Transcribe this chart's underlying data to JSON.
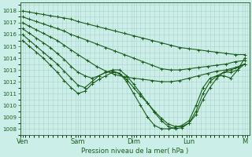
{
  "xlabel": "Pression niveau de la mer( hPa )",
  "bg_color": "#cceee8",
  "grid_color": "#aad4cc",
  "line_color": "#1a5c1a",
  "marker": "+",
  "ylim": [
    1007.5,
    1018.7
  ],
  "yticks": [
    1008,
    1009,
    1010,
    1011,
    1012,
    1013,
    1014,
    1015,
    1016,
    1017,
    1018
  ],
  "xtick_labels": [
    "Ven",
    "Sam",
    "Dim",
    "Lun",
    "M"
  ],
  "xtick_positions": [
    0,
    24,
    48,
    72,
    96
  ],
  "xlim": [
    -1,
    98
  ],
  "lines": [
    {
      "x": [
        0,
        3,
        6,
        9,
        12,
        15,
        18,
        21,
        24,
        28,
        32,
        36,
        40,
        44,
        48,
        52,
        56,
        60,
        64,
        68,
        72,
        76,
        80,
        84,
        88,
        92,
        96
      ],
      "y": [
        1018.0,
        1017.9,
        1017.8,
        1017.7,
        1017.6,
        1017.5,
        1017.4,
        1017.3,
        1017.1,
        1016.9,
        1016.7,
        1016.5,
        1016.3,
        1016.1,
        1015.9,
        1015.7,
        1015.5,
        1015.3,
        1015.1,
        1014.9,
        1014.8,
        1014.7,
        1014.6,
        1014.5,
        1014.4,
        1014.3,
        1014.3
      ]
    },
    {
      "x": [
        0,
        3,
        6,
        9,
        12,
        15,
        18,
        21,
        24,
        28,
        32,
        36,
        40,
        44,
        48,
        52,
        56,
        60,
        64,
        68,
        72,
        76,
        80,
        84,
        88,
        92,
        96
      ],
      "y": [
        1017.5,
        1017.3,
        1017.1,
        1016.9,
        1016.7,
        1016.5,
        1016.3,
        1016.0,
        1015.8,
        1015.5,
        1015.2,
        1014.9,
        1014.6,
        1014.3,
        1014.0,
        1013.7,
        1013.4,
        1013.1,
        1013.0,
        1013.0,
        1013.1,
        1013.2,
        1013.3,
        1013.4,
        1013.5,
        1013.7,
        1013.8
      ]
    },
    {
      "x": [
        0,
        3,
        6,
        9,
        12,
        15,
        18,
        21,
        24,
        28,
        32,
        36,
        40,
        44,
        48,
        52,
        56,
        60,
        64,
        68,
        72,
        76,
        80,
        84,
        88,
        92,
        96
      ],
      "y": [
        1017.0,
        1016.7,
        1016.4,
        1016.1,
        1015.8,
        1015.5,
        1015.1,
        1014.7,
        1014.3,
        1013.8,
        1013.3,
        1012.9,
        1012.6,
        1012.4,
        1012.3,
        1012.2,
        1012.1,
        1012.0,
        1012.0,
        1012.1,
        1012.3,
        1012.5,
        1012.7,
        1012.9,
        1013.0,
        1013.2,
        1013.5
      ]
    },
    {
      "x": [
        0,
        3,
        6,
        9,
        12,
        15,
        18,
        21,
        24,
        27,
        30,
        33,
        36,
        39,
        42,
        45,
        48,
        51,
        54,
        57,
        60,
        63,
        66,
        69,
        72,
        75,
        78,
        81,
        84,
        87,
        90,
        93,
        96
      ],
      "y": [
        1016.5,
        1016.1,
        1015.7,
        1015.3,
        1014.9,
        1014.4,
        1013.9,
        1013.3,
        1012.8,
        1012.5,
        1012.3,
        1012.5,
        1012.8,
        1012.9,
        1012.7,
        1012.2,
        1011.5,
        1010.8,
        1010.2,
        1009.5,
        1008.9,
        1008.4,
        1008.2,
        1008.2,
        1008.5,
        1009.2,
        1010.5,
        1011.5,
        1012.3,
        1012.8,
        1013.0,
        1013.2,
        1013.5
      ]
    },
    {
      "x": [
        0,
        3,
        6,
        9,
        12,
        15,
        18,
        21,
        24,
        27,
        30,
        33,
        36,
        39,
        42,
        45,
        48,
        51,
        54,
        57,
        60,
        63,
        66,
        69,
        72,
        75,
        78,
        81,
        84,
        87,
        90,
        93,
        96
      ],
      "y": [
        1016.0,
        1015.5,
        1015.0,
        1014.5,
        1014.0,
        1013.5,
        1012.9,
        1012.3,
        1011.7,
        1011.5,
        1012.0,
        1012.5,
        1012.8,
        1013.0,
        1013.0,
        1012.5,
        1011.8,
        1011.0,
        1010.2,
        1009.4,
        1008.7,
        1008.2,
        1008.0,
        1008.1,
        1008.5,
        1009.5,
        1011.0,
        1012.0,
        1012.5,
        1012.8,
        1012.8,
        1013.0,
        1013.5
      ]
    },
    {
      "x": [
        0,
        3,
        6,
        9,
        12,
        15,
        18,
        21,
        24,
        27,
        30,
        33,
        36,
        39,
        42,
        45,
        48,
        51,
        54,
        57,
        60,
        63,
        66,
        69,
        72,
        75,
        78,
        81,
        84,
        87,
        90,
        93,
        96
      ],
      "y": [
        1015.5,
        1015.0,
        1014.5,
        1014.0,
        1013.4,
        1012.8,
        1012.1,
        1011.5,
        1011.0,
        1011.2,
        1011.8,
        1012.2,
        1012.5,
        1012.8,
        1012.7,
        1012.0,
        1011.0,
        1010.0,
        1009.0,
        1008.3,
        1008.0,
        1008.0,
        1008.1,
        1008.3,
        1008.7,
        1010.0,
        1011.5,
        1012.3,
        1012.5,
        1012.5,
        1012.3,
        1013.0,
        1014.0
      ]
    }
  ]
}
